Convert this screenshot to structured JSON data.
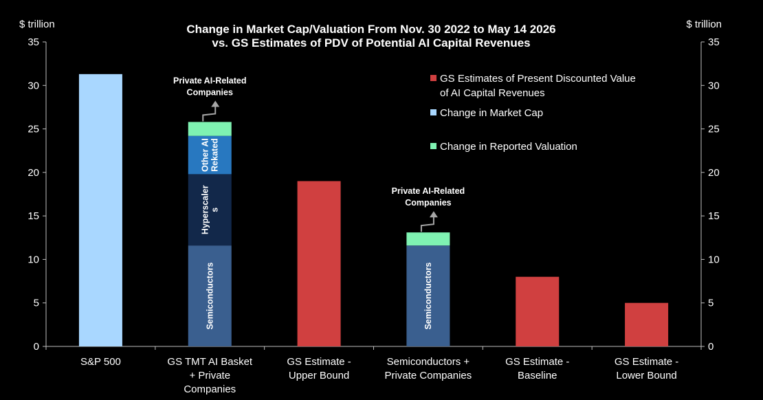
{
  "chart_data": {
    "type": "bar",
    "stacked": true,
    "title": [
      "Change in Market Cap/Valuation From Nov. 30 2022 to May 14 2026",
      "vs. GS Estimates of PDV of  Potential AI Capital Revenues"
    ],
    "left_axis_unit": "$ trillion",
    "right_axis_unit": "$ trillion",
    "ylim": [
      0,
      35
    ],
    "yticks": [
      0,
      5,
      10,
      15,
      20,
      25,
      30,
      35
    ],
    "grid": false,
    "categories": [
      [
        "S&P 500"
      ],
      [
        "GS TMT AI Basket",
        "+ Private",
        "Companies"
      ],
      [
        "GS Estimate -",
        "Upper Bound"
      ],
      [
        "Semiconductors +",
        "Private Companies"
      ],
      [
        "GS Estimate -",
        "Baseline"
      ],
      [
        "GS Estimate -",
        "Lower Bound"
      ]
    ],
    "bars": [
      {
        "segments": [
          {
            "value": 31.3,
            "color": "#a9d7ff",
            "label": []
          }
        ]
      },
      {
        "segments": [
          {
            "value": 11.6,
            "color": "#3a5f8f",
            "label": [
              "Semiconductors"
            ]
          },
          {
            "value": 8.2,
            "color": "#12284a",
            "label": [
              "Hyperscaler",
              "s"
            ]
          },
          {
            "value": 4.4,
            "color": "#2878c0",
            "label": [
              "Other AI",
              "Rekated"
            ]
          },
          {
            "value": 1.6,
            "color": "#7ff2b2",
            "label": []
          }
        ]
      },
      {
        "segments": [
          {
            "value": 19.0,
            "color": "#d04040",
            "label": []
          }
        ]
      },
      {
        "segments": [
          {
            "value": 11.6,
            "color": "#3a5f8f",
            "label": [
              "Semiconductors"
            ]
          },
          {
            "value": 1.5,
            "color": "#7ff2b2",
            "label": []
          }
        ]
      },
      {
        "segments": [
          {
            "value": 8.0,
            "color": "#d04040",
            "label": []
          }
        ]
      },
      {
        "segments": [
          {
            "value": 5.0,
            "color": "#d04040",
            "label": []
          }
        ]
      }
    ],
    "annotations": [
      {
        "bar": 1,
        "text": [
          "Private AI-Related",
          "Companies"
        ]
      },
      {
        "bar": 3,
        "text": [
          "Private AI-Related",
          "Companies"
        ]
      }
    ],
    "legend": {
      "placement": "top-right",
      "items": [
        {
          "text": [
            "GS Estimates of Present Discounted Value",
            "of AI Capital Revenues"
          ],
          "color": "#d04040"
        },
        {
          "text": [
            "Change in Market Cap"
          ],
          "color": "#a9d7ff"
        },
        {
          "text": [
            "Change in Reported Valuation"
          ],
          "color": "#7ff2b2"
        }
      ]
    }
  }
}
